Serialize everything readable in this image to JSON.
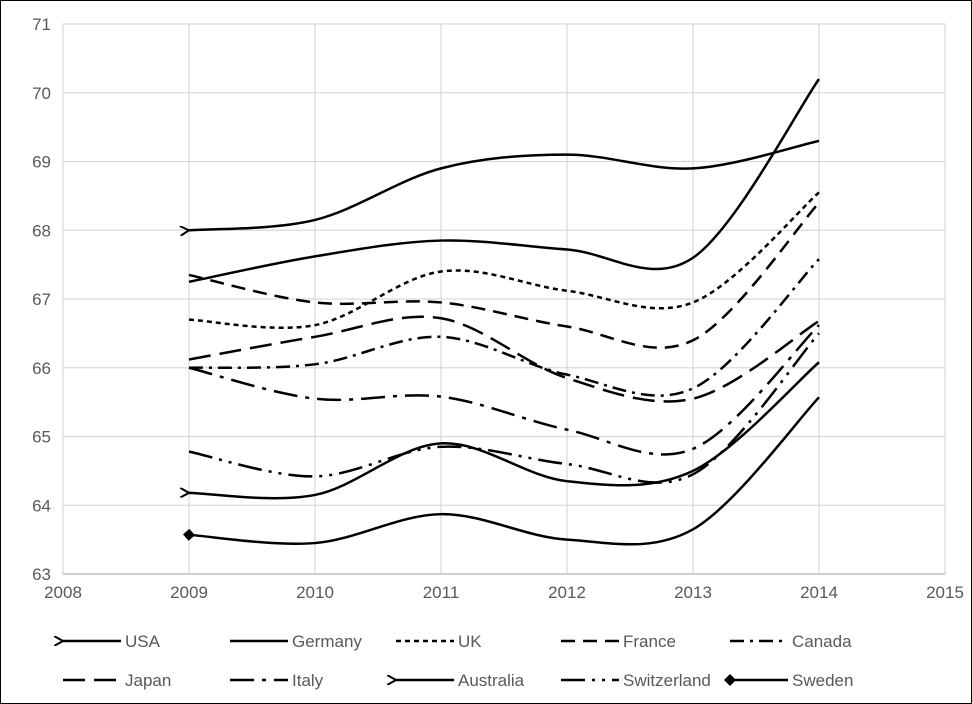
{
  "chart_data": {
    "type": "line",
    "title": "",
    "xlabel": "",
    "ylabel": "",
    "xlim": [
      2008,
      2015
    ],
    "ylim": [
      63,
      71
    ],
    "x_ticks": [
      2008,
      2009,
      2010,
      2011,
      2012,
      2013,
      2014,
      2015
    ],
    "y_ticks": [
      63,
      64,
      65,
      66,
      67,
      68,
      69,
      70,
      71
    ],
    "grid": true,
    "legend_position": "bottom",
    "series": [
      {
        "name": "USA",
        "style": "solid-arrow",
        "x": [
          2009,
          2010,
          2011,
          2012,
          2013,
          2014
        ],
        "y": [
          68.0,
          68.15,
          68.9,
          69.1,
          68.9,
          69.3
        ]
      },
      {
        "name": "Germany",
        "style": "solid",
        "x": [
          2009,
          2010,
          2011,
          2012,
          2013,
          2014
        ],
        "y": [
          67.25,
          67.62,
          67.85,
          67.72,
          67.6,
          70.2
        ]
      },
      {
        "name": "UK",
        "style": "short-dash",
        "x": [
          2009,
          2010,
          2011,
          2012,
          2013,
          2014
        ],
        "y": [
          66.7,
          66.62,
          67.4,
          67.12,
          66.95,
          68.55
        ]
      },
      {
        "name": "France",
        "style": "dash",
        "x": [
          2009,
          2010,
          2011,
          2012,
          2013,
          2014
        ],
        "y": [
          67.35,
          66.95,
          66.95,
          66.6,
          66.4,
          68.4
        ]
      },
      {
        "name": "Canada",
        "style": "dash-dot",
        "x": [
          2009,
          2010,
          2011,
          2012,
          2013,
          2014
        ],
        "y": [
          66.0,
          66.05,
          66.45,
          65.9,
          65.7,
          67.58
        ]
      },
      {
        "name": "Japan",
        "style": "long-dash",
        "x": [
          2009,
          2010,
          2011,
          2012,
          2013,
          2014
        ],
        "y": [
          66.12,
          66.45,
          66.72,
          65.85,
          65.55,
          66.68
        ]
      },
      {
        "name": "Italy",
        "style": "long-dash-dot",
        "x": [
          2009,
          2010,
          2011,
          2012,
          2013,
          2014
        ],
        "y": [
          66.0,
          65.55,
          65.58,
          65.1,
          64.82,
          66.62
        ]
      },
      {
        "name": "Australia",
        "style": "solid-arrow",
        "x": [
          2009,
          2010,
          2011,
          2012,
          2013,
          2014
        ],
        "y": [
          64.18,
          64.15,
          64.9,
          64.35,
          64.5,
          66.08
        ]
      },
      {
        "name": "Switzerland",
        "style": "long-dash-dot-dot",
        "x": [
          2009,
          2010,
          2011,
          2012,
          2013,
          2014
        ],
        "y": [
          64.78,
          64.42,
          64.85,
          64.6,
          64.45,
          66.5
        ]
      },
      {
        "name": "Sweden",
        "style": "solid-diamond",
        "x": [
          2009,
          2010,
          2011,
          2012,
          2013,
          2014
        ],
        "y": [
          63.57,
          63.45,
          63.87,
          63.5,
          63.65,
          65.57
        ]
      }
    ]
  }
}
